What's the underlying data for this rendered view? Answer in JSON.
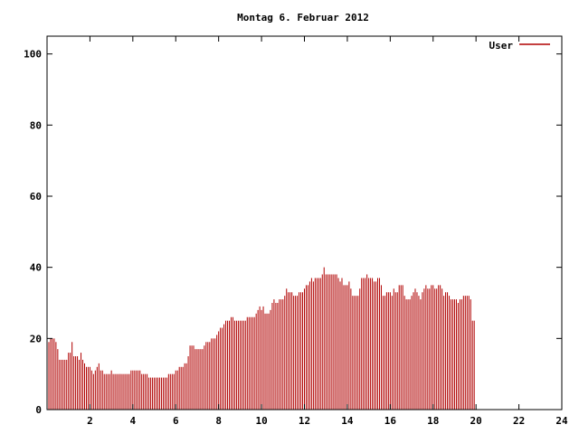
{
  "chart_data": {
    "type": "bar",
    "title": "Montag 6. Februar 2012",
    "xlabel": "",
    "ylabel": "",
    "xlim": [
      0,
      24
    ],
    "ylim": [
      0,
      105
    ],
    "xticks": [
      2,
      4,
      6,
      8,
      10,
      12,
      14,
      16,
      18,
      20,
      22,
      24
    ],
    "yticks": [
      0,
      20,
      40,
      60,
      80,
      100
    ],
    "grid": false,
    "legend_position": "top-right",
    "series": [
      {
        "name": "User",
        "color": "#b00000",
        "bin_minutes": 5,
        "values": [
          19,
          19,
          20,
          20,
          20,
          19,
          17,
          14,
          14,
          14,
          14,
          14,
          16,
          16,
          19,
          15,
          15,
          15,
          14,
          16,
          14,
          13,
          12,
          12,
          12,
          11,
          10,
          11,
          12,
          13,
          11,
          11,
          10,
          10,
          10,
          10,
          11,
          10,
          10,
          10,
          10,
          10,
          10,
          10,
          10,
          10,
          10,
          11,
          11,
          11,
          11,
          11,
          11,
          10,
          10,
          10,
          10,
          9,
          9,
          9,
          9,
          9,
          9,
          9,
          9,
          9,
          9,
          9,
          10,
          10,
          10,
          10,
          11,
          11,
          12,
          12,
          12,
          13,
          13,
          15,
          18,
          18,
          18,
          17,
          17,
          17,
          17,
          17,
          18,
          19,
          19,
          19,
          20,
          20,
          20,
          21,
          22,
          23,
          23,
          24,
          25,
          25,
          25,
          26,
          26,
          25,
          25,
          25,
          25,
          25,
          25,
          25,
          26,
          26,
          26,
          26,
          26,
          27,
          28,
          29,
          28,
          29,
          27,
          27,
          27,
          28,
          30,
          31,
          30,
          30,
          31,
          31,
          31,
          32,
          34,
          33,
          33,
          33,
          32,
          32,
          32,
          33,
          33,
          33,
          34,
          35,
          35,
          36,
          37,
          36,
          37,
          37,
          37,
          37,
          38,
          40,
          38,
          38,
          38,
          38,
          38,
          38,
          38,
          37,
          36,
          37,
          35,
          35,
          35,
          36,
          34,
          32,
          32,
          32,
          32,
          34,
          37,
          37,
          37,
          38,
          37,
          37,
          37,
          36,
          36,
          37,
          37,
          35,
          32,
          32,
          33,
          33,
          33,
          32,
          34,
          33,
          33,
          35,
          35,
          35,
          32,
          31,
          31,
          31,
          32,
          33,
          34,
          33,
          32,
          31,
          33,
          34,
          35,
          34,
          34,
          35,
          35,
          34,
          34,
          35,
          35,
          34,
          32,
          33,
          33,
          32,
          31,
          31,
          31,
          31,
          30,
          31,
          31,
          32,
          32,
          32,
          32,
          31,
          25,
          25
        ]
      }
    ]
  }
}
